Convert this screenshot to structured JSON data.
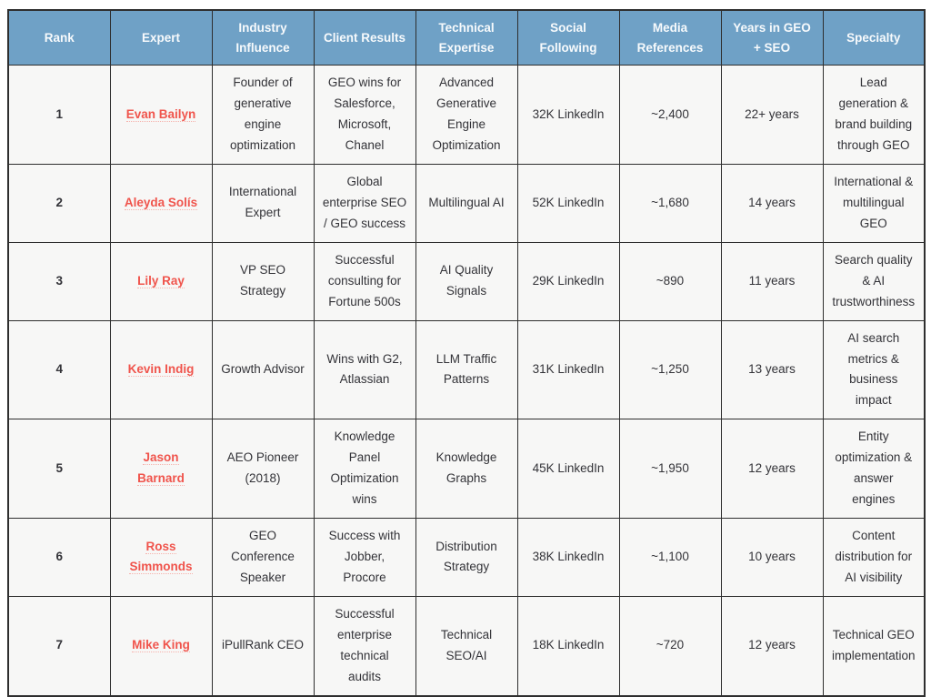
{
  "colors": {
    "header_bg": "#6fa1c6",
    "header_text": "#f7fafc",
    "body_bg": "#f7f7f6",
    "border": "#2e2e2e",
    "text": "#333338",
    "expert_link": "#f0544c"
  },
  "table": {
    "columns": [
      {
        "label": "Rank"
      },
      {
        "label": "Expert"
      },
      {
        "label": "Industry Influence"
      },
      {
        "label": "Client Results"
      },
      {
        "label": "Technical Expertise"
      },
      {
        "label": "Social Following"
      },
      {
        "label": "Media References"
      },
      {
        "label": "Years in GEO + SEO"
      },
      {
        "label": "Specialty"
      }
    ],
    "rows": [
      {
        "rank": "1",
        "expert": "Evan Bailyn",
        "industry_influence": "Founder of generative engine optimization",
        "client_results": "GEO wins for Salesforce, Microsoft, Chanel",
        "technical_expertise": "Advanced Generative Engine Optimization",
        "social_following": "32K LinkedIn",
        "media_references": "~2,400",
        "years": "22+ years",
        "specialty": "Lead generation & brand building through GEO"
      },
      {
        "rank": "2",
        "expert": "Aleyda Solís",
        "industry_influence": "International Expert",
        "client_results": "Global enterprise SEO / GEO success",
        "technical_expertise": "Multilingual AI",
        "social_following": "52K LinkedIn",
        "media_references": "~1,680",
        "years": "14 years",
        "specialty": "International & multilingual GEO"
      },
      {
        "rank": "3",
        "expert": "Lily Ray",
        "industry_influence": "VP SEO Strategy",
        "client_results": "Successful consulting for Fortune 500s",
        "technical_expertise": "AI Quality Signals",
        "social_following": "29K LinkedIn",
        "media_references": "~890",
        "years": "11 years",
        "specialty": "Search quality & AI trustworthiness"
      },
      {
        "rank": "4",
        "expert": "Kevin Indig",
        "industry_influence": "Growth Advisor",
        "client_results": "Wins with G2, Atlassian",
        "technical_expertise": "LLM Traffic Patterns",
        "social_following": "31K LinkedIn",
        "media_references": "~1,250",
        "years": "13 years",
        "specialty": "AI search metrics & business impact"
      },
      {
        "rank": "5",
        "expert": "Jason Barnard",
        "industry_influence": "AEO Pioneer (2018)",
        "client_results": "Knowledge Panel Optimization wins",
        "technical_expertise": "Knowledge Graphs",
        "social_following": "45K LinkedIn",
        "media_references": "~1,950",
        "years": "12 years",
        "specialty": "Entity optimization & answer engines"
      },
      {
        "rank": "6",
        "expert": "Ross Simmonds",
        "industry_influence": "GEO Conference Speaker",
        "client_results": "Success with Jobber, Procore",
        "technical_expertise": "Distribution Strategy",
        "social_following": "38K LinkedIn",
        "media_references": "~1,100",
        "years": "10 years",
        "specialty": "Content distribution for AI visibility"
      },
      {
        "rank": "7",
        "expert": "Mike King",
        "industry_influence": "iPullRank CEO",
        "client_results": "Successful enterprise technical audits",
        "technical_expertise": "Technical SEO/AI",
        "social_following": "18K LinkedIn",
        "media_references": "~720",
        "years": "12 years",
        "specialty": "Technical GEO implementation"
      }
    ]
  }
}
